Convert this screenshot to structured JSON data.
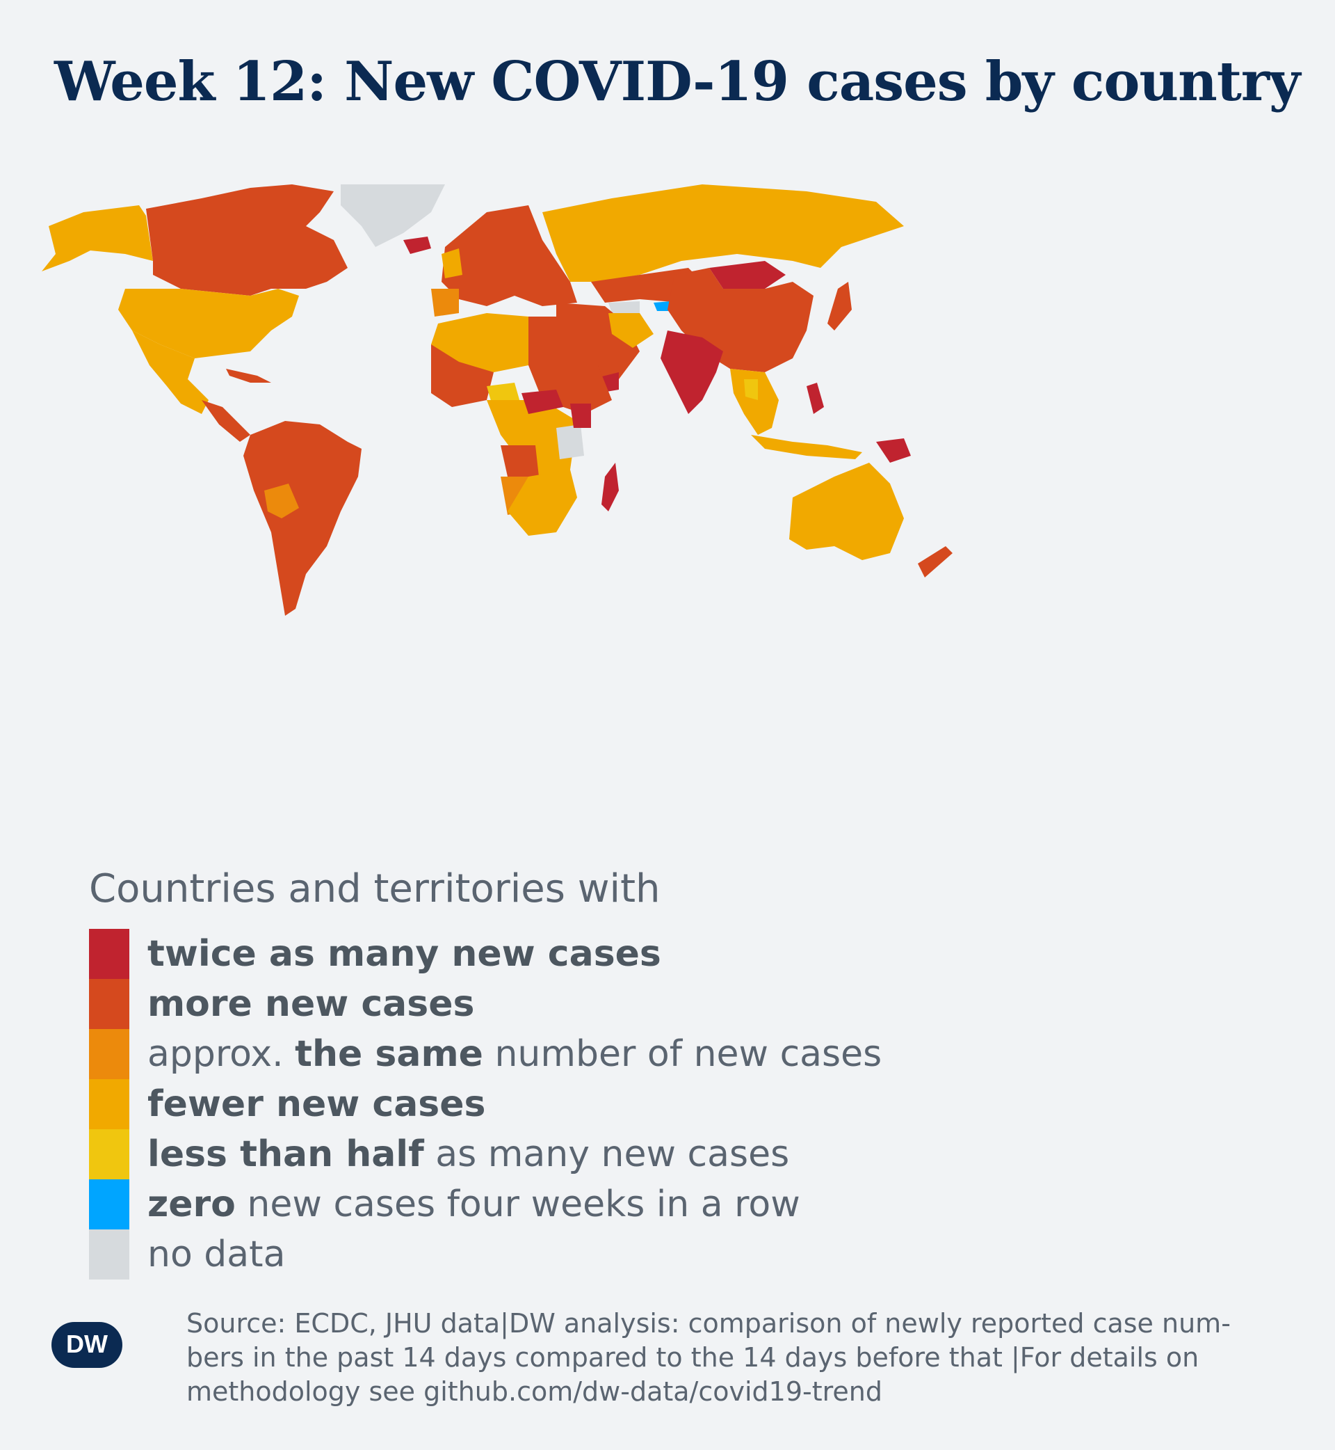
{
  "title": "Week 12: New COVID-19 cases by country",
  "legend": {
    "heading": "Countries and territories with",
    "items": [
      {
        "key": "twice",
        "color": "#c0232f",
        "bold_before": "",
        "bold": "twice as many new cases",
        "after": ""
      },
      {
        "key": "more",
        "color": "#d5491e",
        "bold_before": "",
        "bold": "more new cases",
        "after": ""
      },
      {
        "key": "same",
        "color": "#ec8a0c",
        "bold_before": "approx. ",
        "bold": "the same",
        "after": " number of new cases"
      },
      {
        "key": "fewer",
        "color": "#f1a900",
        "bold_before": "",
        "bold": "fewer new cases",
        "after": ""
      },
      {
        "key": "half",
        "color": "#f0c60f",
        "bold_before": "",
        "bold": "less than half",
        "after": " as many new cases"
      },
      {
        "key": "zero",
        "color": "#00a5ff",
        "bold_before": "",
        "bold": "zero",
        "after": " new cases four weeks in a row"
      },
      {
        "key": "nodata",
        "color": "#d6dadd",
        "bold_before": "",
        "bold": "",
        "after": "no data"
      }
    ]
  },
  "source": {
    "line1": "Source: ECDC, JHU data|DW analysis: comparison of newly reported case num-",
    "line2": "bers in the past 14 days compared to the 14 days before that |For details on",
    "line3": "methodology see github.com/dw-data/covid19-trend"
  },
  "logo_text": "DW",
  "colors": {
    "title": "#0b2a52",
    "text": "#5a6470",
    "background": "#f1f3f5"
  }
}
